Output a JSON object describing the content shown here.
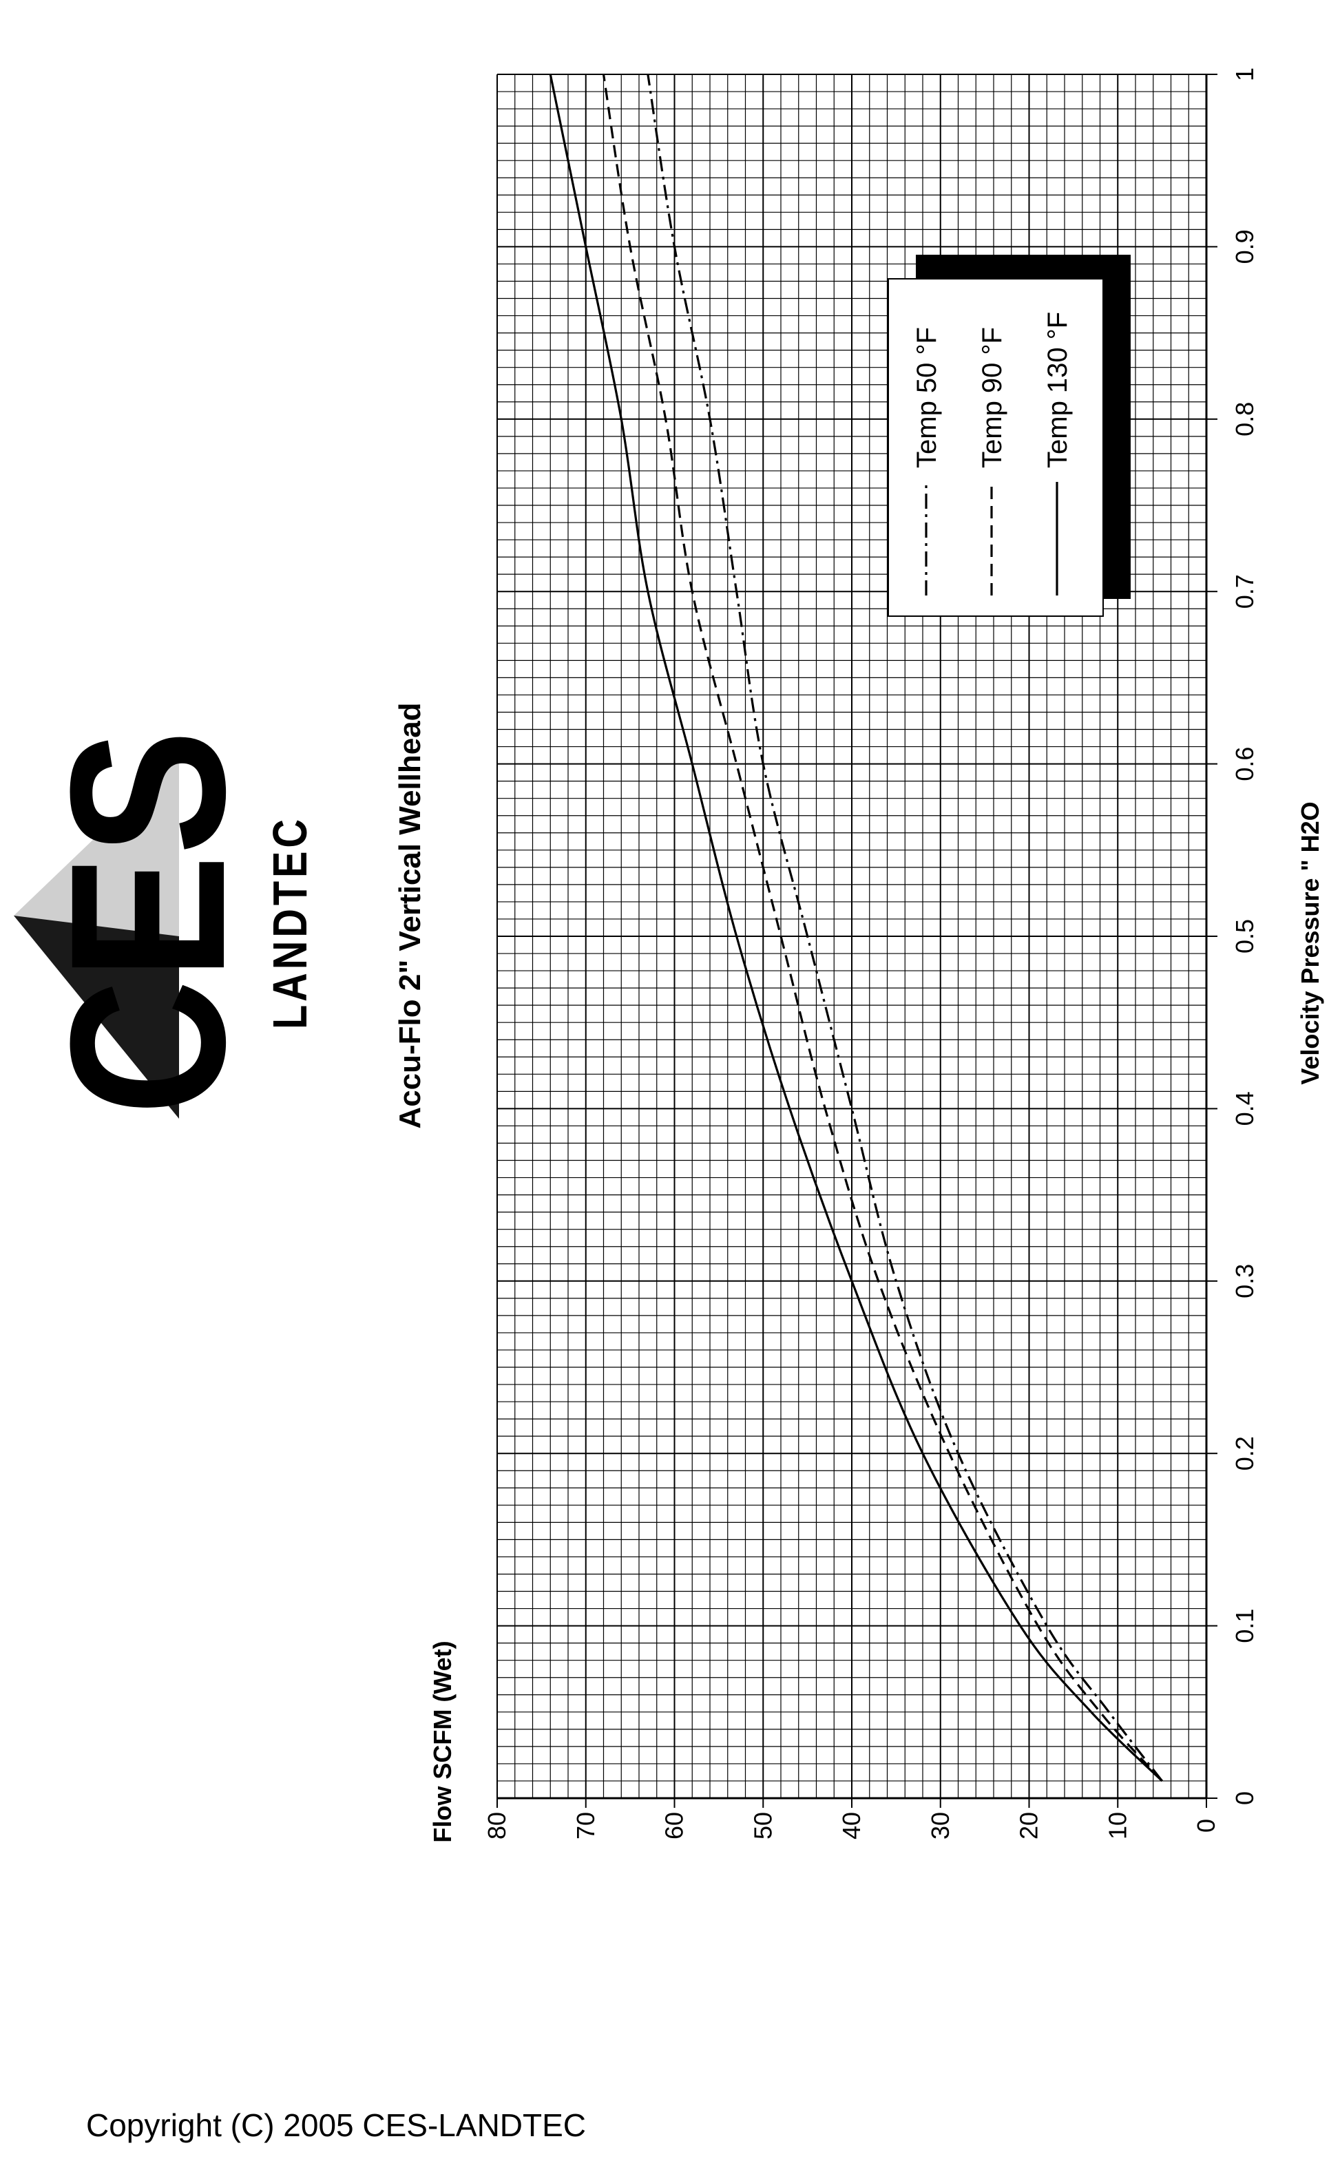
{
  "logo": {
    "brand_text": "CES",
    "sub_text": "LANDTEC"
  },
  "copyright": "Copyright (C) 2005 CES-LANDTEC",
  "chart_data": {
    "type": "line",
    "title": "Accu-Flo 2\" Vertical Wellhead",
    "xlabel": "Velocity Pressure \" H2O",
    "ylabel": "Flow SCFM (Wet)",
    "xlim": [
      0,
      1
    ],
    "ylim": [
      0,
      80
    ],
    "x_ticks": [
      "0",
      "0.1",
      "0.2",
      "0.3",
      "0.4",
      "0.5",
      "0.6",
      "0.7",
      "0.8",
      "0.9",
      "1"
    ],
    "y_ticks": [
      "0",
      "10",
      "20",
      "30",
      "40",
      "50",
      "60",
      "70",
      "80"
    ],
    "grid": true,
    "legend_placement": "top-right",
    "series": [
      {
        "name": "Temp 50 °F",
        "style": "dash-dot",
        "x": [
          0.01,
          0.05,
          0.1,
          0.2,
          0.3,
          0.4,
          0.5,
          0.6,
          0.7,
          0.8,
          0.9,
          1.0
        ],
        "values": [
          5,
          11,
          18,
          28,
          35,
          40,
          45,
          50,
          53,
          56,
          60,
          63
        ]
      },
      {
        "name": "Temp 90 °F",
        "style": "dashed",
        "x": [
          0.01,
          0.05,
          0.1,
          0.2,
          0.3,
          0.4,
          0.5,
          0.6,
          0.7,
          0.8,
          0.9,
          1.0
        ],
        "values": [
          5,
          12,
          19,
          29,
          37,
          43,
          48,
          53,
          58,
          61,
          65,
          68
        ]
      },
      {
        "name": "Temp 130 °F",
        "style": "solid",
        "x": [
          0.01,
          0.05,
          0.1,
          0.2,
          0.3,
          0.4,
          0.5,
          0.6,
          0.7,
          0.8,
          0.9,
          1.0
        ],
        "values": [
          5,
          13,
          21,
          32,
          40,
          47,
          53,
          58,
          63,
          66,
          70,
          74
        ]
      }
    ]
  }
}
